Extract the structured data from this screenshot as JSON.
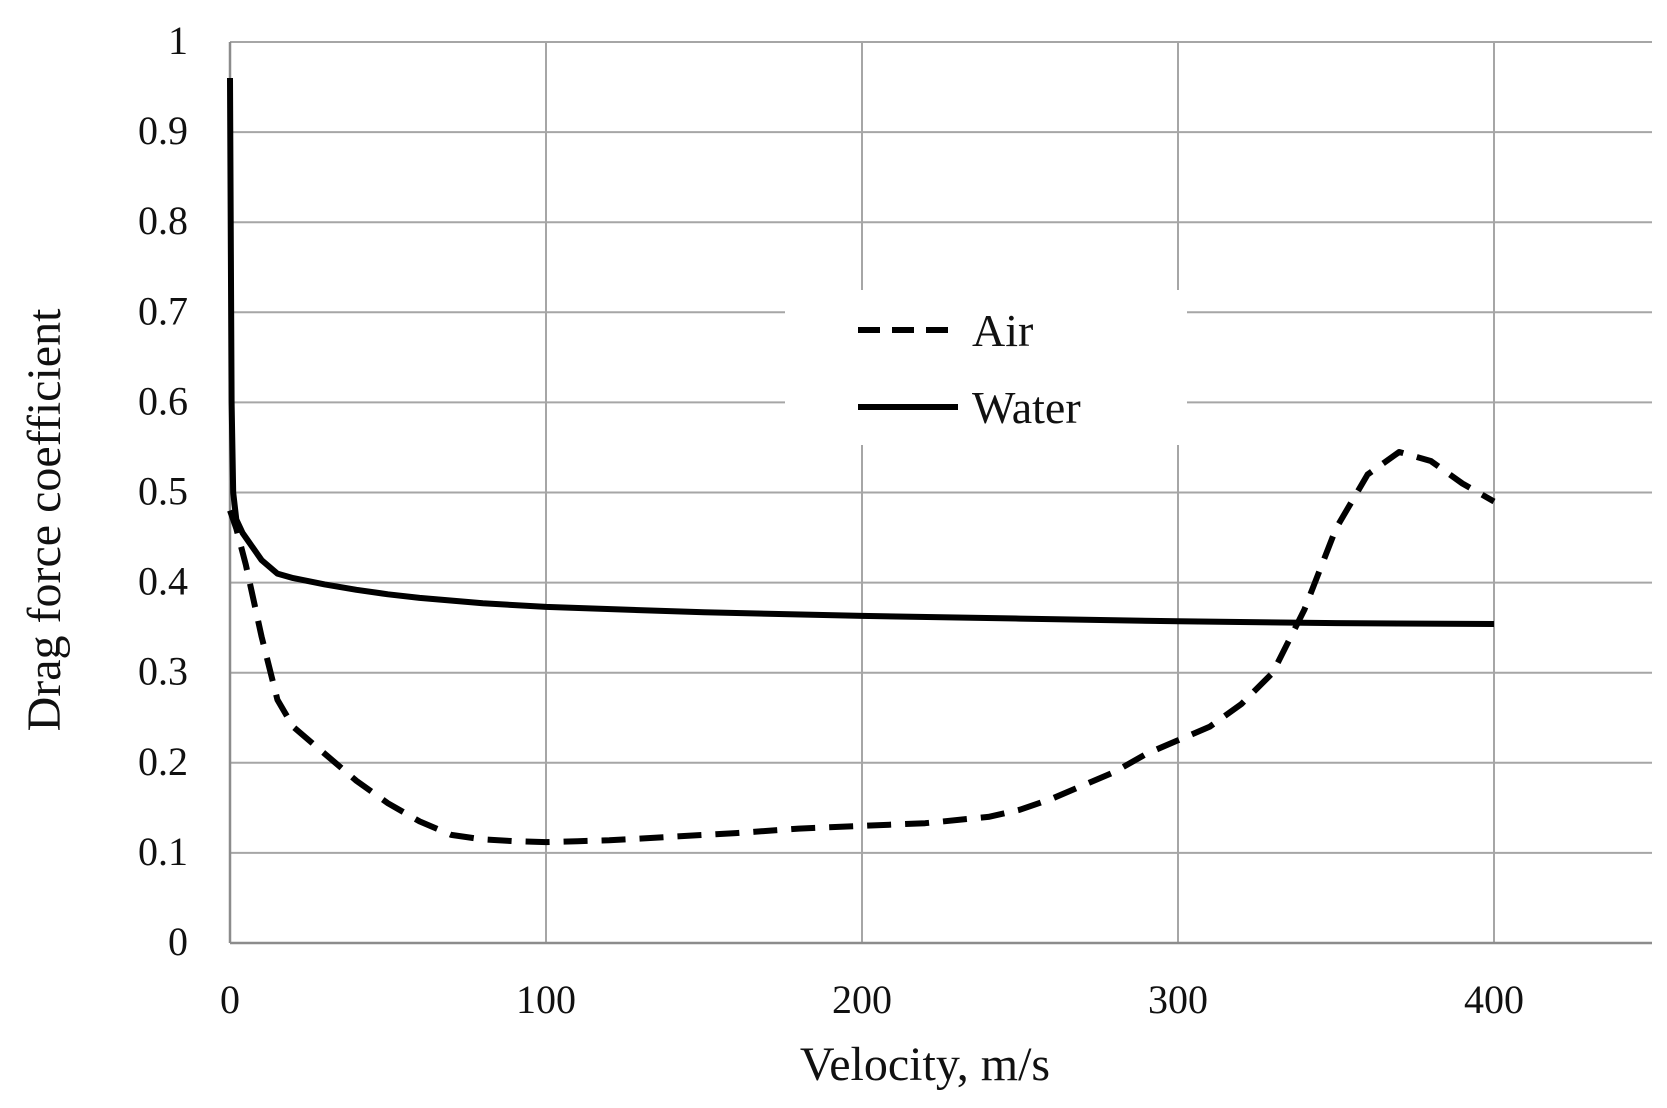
{
  "chart_data": {
    "type": "line",
    "title": "",
    "xlabel": "Velocity, m/s",
    "ylabel": "Drag force coefficient",
    "xlim": [
      0,
      450
    ],
    "ylim": [
      0,
      1
    ],
    "x_ticks": [
      0,
      100,
      200,
      300,
      400
    ],
    "x_tick_labels": [
      "0",
      "100",
      "200",
      "300",
      "400"
    ],
    "y_ticks": [
      0,
      0.1,
      0.2,
      0.3,
      0.4,
      0.5,
      0.6,
      0.7,
      0.8,
      0.9,
      1
    ],
    "y_tick_labels": [
      "0",
      "0.1",
      "0.2",
      "0.3",
      "0.4",
      "0.5",
      "0.6",
      "0.7",
      "0.8",
      "0.9",
      "1"
    ],
    "x_gridlines": [
      0,
      100,
      200,
      300,
      400
    ],
    "grid": true,
    "legend_position": "center-right",
    "series": [
      {
        "name": "Air",
        "style": "dashed",
        "color": "#000000",
        "x": [
          0,
          2,
          5,
          10,
          15,
          20,
          30,
          40,
          50,
          60,
          70,
          80,
          90,
          100,
          110,
          120,
          140,
          160,
          180,
          200,
          220,
          240,
          250,
          260,
          270,
          280,
          290,
          300,
          310,
          320,
          330,
          340,
          350,
          360,
          370,
          380,
          390,
          400
        ],
        "y": [
          0.48,
          0.46,
          0.42,
          0.34,
          0.27,
          0.24,
          0.21,
          0.18,
          0.155,
          0.135,
          0.12,
          0.115,
          0.113,
          0.112,
          0.113,
          0.114,
          0.118,
          0.122,
          0.127,
          0.13,
          0.133,
          0.14,
          0.148,
          0.16,
          0.175,
          0.19,
          0.21,
          0.225,
          0.24,
          0.265,
          0.3,
          0.37,
          0.46,
          0.52,
          0.545,
          0.535,
          0.51,
          0.49
        ]
      },
      {
        "name": "Water",
        "style": "solid",
        "color": "#000000",
        "x": [
          0,
          0.5,
          1,
          2,
          4,
          6,
          10,
          15,
          20,
          30,
          40,
          50,
          60,
          80,
          100,
          150,
          200,
          250,
          300,
          350,
          400
        ],
        "y": [
          0.96,
          0.6,
          0.5,
          0.47,
          0.455,
          0.445,
          0.425,
          0.41,
          0.405,
          0.398,
          0.392,
          0.387,
          0.383,
          0.377,
          0.373,
          0.367,
          0.363,
          0.36,
          0.357,
          0.355,
          0.354
        ]
      }
    ]
  }
}
